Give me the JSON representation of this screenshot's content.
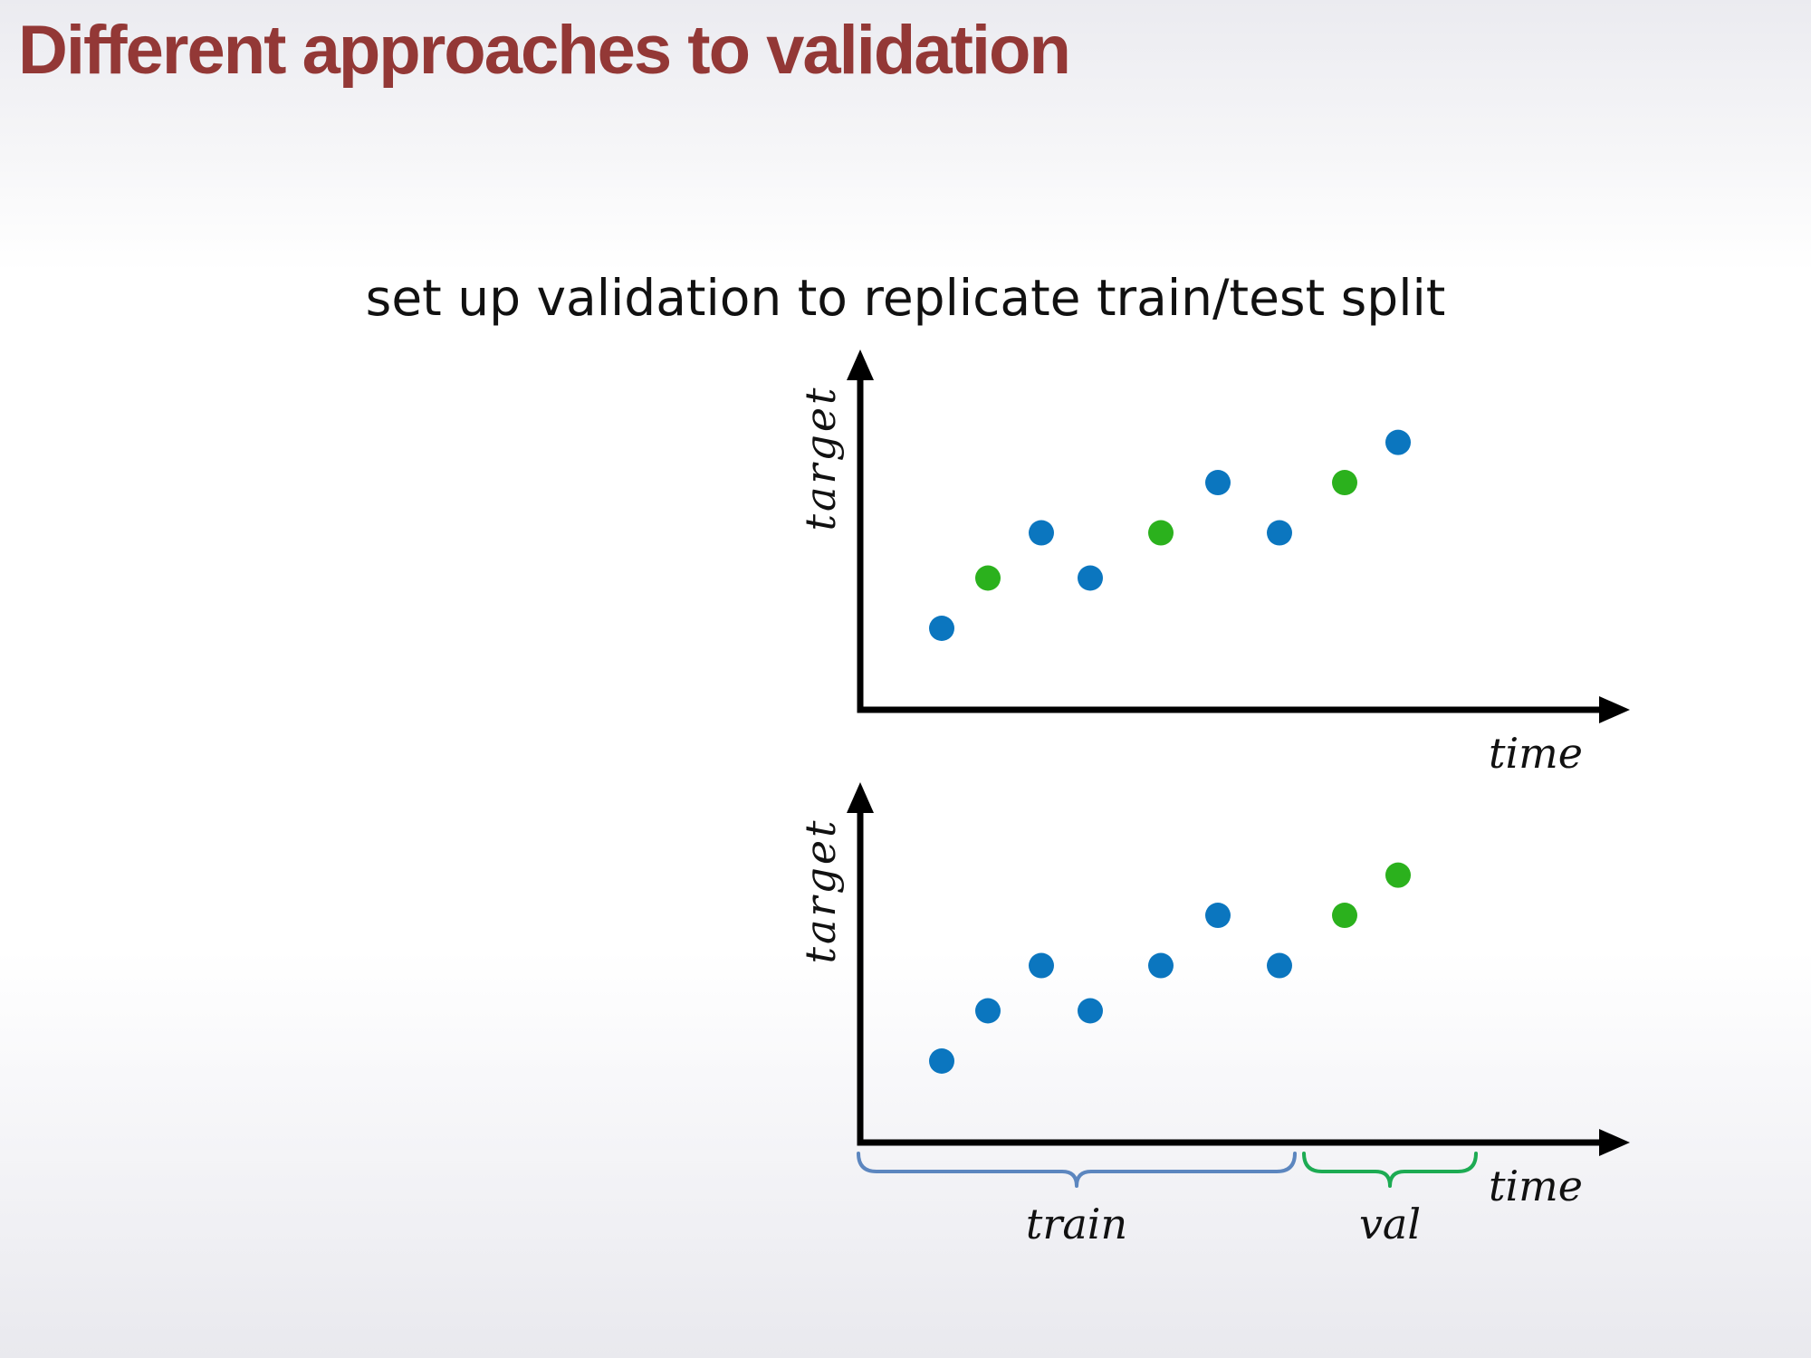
{
  "title": "Different approaches to validation",
  "subtitle": "set up validation to replicate train/test split",
  "colors": {
    "title": "#933836",
    "train_point": "#0b76bf",
    "val_point": "#2bb11d",
    "train_brace": "#5c86bf",
    "val_brace": "#1dab53",
    "axis": "#000000"
  },
  "panels": [
    {
      "id": "random-split",
      "xlabel": "time",
      "ylabel": "target",
      "points": [
        {
          "t": 1,
          "v": 1.0,
          "set": "train"
        },
        {
          "t": 2,
          "v": 2.0,
          "set": "val"
        },
        {
          "t": 3,
          "v": 2.9,
          "set": "train"
        },
        {
          "t": 4,
          "v": 2.0,
          "set": "train"
        },
        {
          "t": 5,
          "v": 2.9,
          "set": "val"
        },
        {
          "t": 6,
          "v": 3.9,
          "set": "train"
        },
        {
          "t": 7,
          "v": 2.9,
          "set": "train"
        },
        {
          "t": 8,
          "v": 3.9,
          "set": "val"
        },
        {
          "t": 9,
          "v": 4.7,
          "set": "train"
        }
      ]
    },
    {
      "id": "time-split",
      "xlabel": "time",
      "ylabel": "target",
      "points": [
        {
          "t": 1,
          "v": 1.0,
          "set": "train"
        },
        {
          "t": 2,
          "v": 2.0,
          "set": "train"
        },
        {
          "t": 3,
          "v": 2.9,
          "set": "train"
        },
        {
          "t": 4,
          "v": 2.0,
          "set": "train"
        },
        {
          "t": 5,
          "v": 2.9,
          "set": "train"
        },
        {
          "t": 6,
          "v": 3.9,
          "set": "train"
        },
        {
          "t": 7,
          "v": 2.9,
          "set": "train"
        },
        {
          "t": 8,
          "v": 3.9,
          "set": "val"
        },
        {
          "t": 9,
          "v": 4.7,
          "set": "val"
        }
      ],
      "braces": [
        {
          "label": "train",
          "set": "train"
        },
        {
          "label": "val",
          "set": "val"
        }
      ]
    }
  ]
}
